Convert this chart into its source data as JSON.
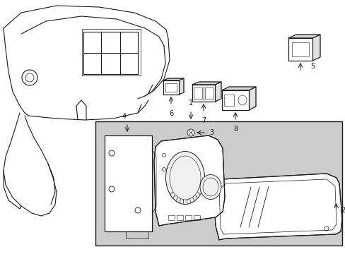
{
  "bg_color": "#ffffff",
  "line_color": "#1a1a1a",
  "box_bg": "#cccccc",
  "fig_width": 4.89,
  "fig_height": 3.6,
  "dpi": 100
}
